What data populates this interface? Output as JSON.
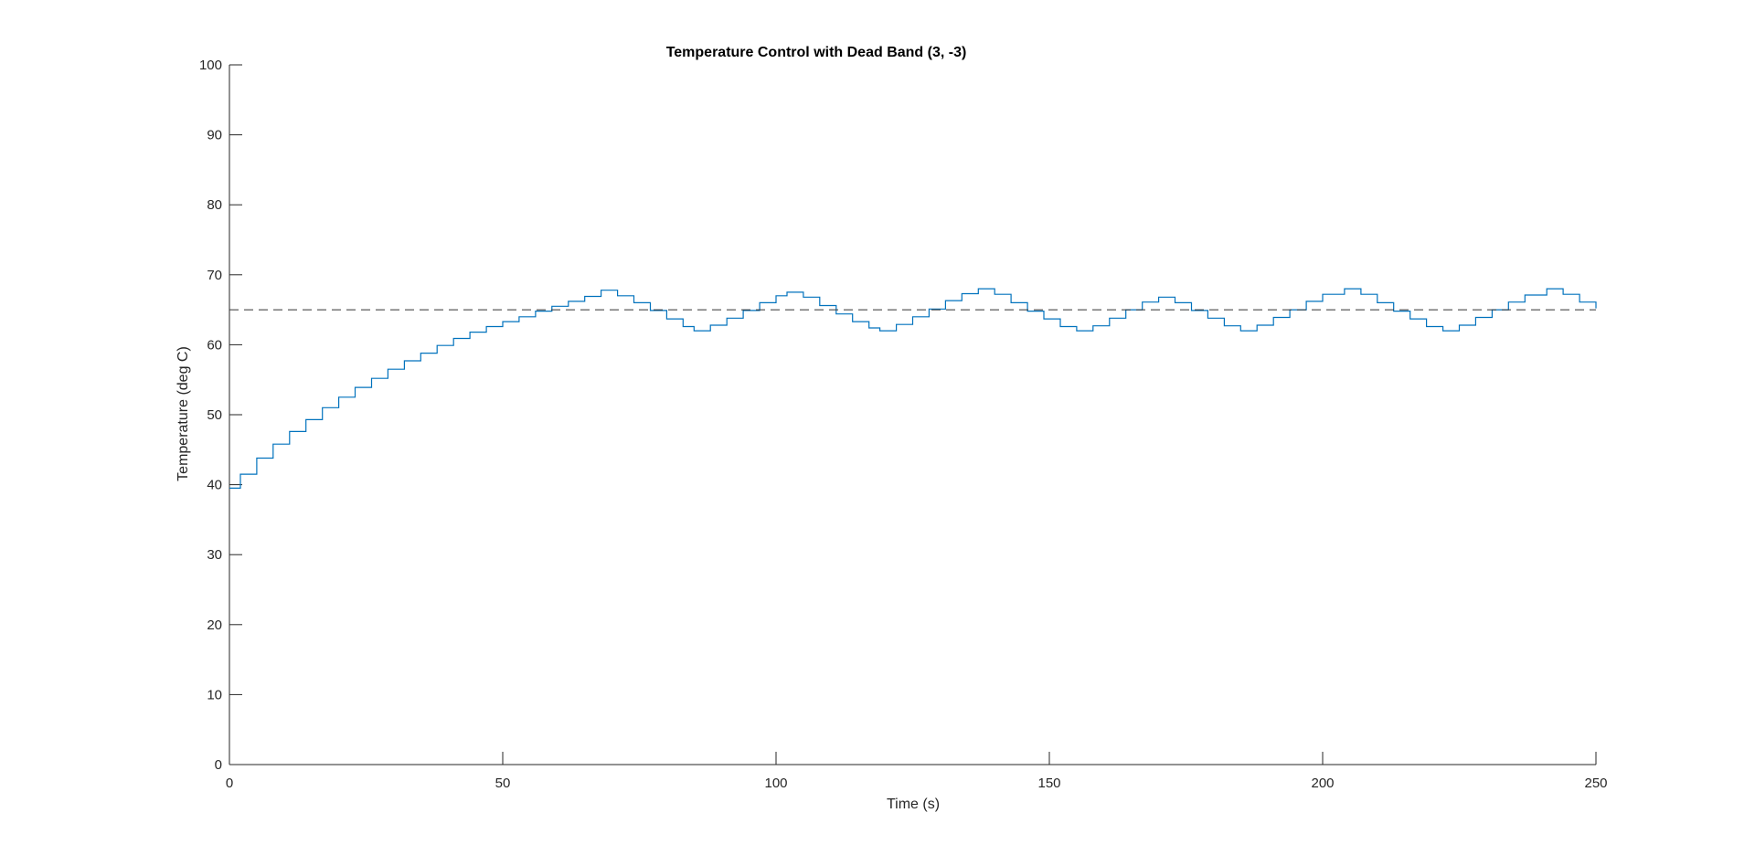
{
  "chart_data": {
    "type": "line",
    "title": "Temperature Control with Dead Band (3, -3)",
    "xlabel": "Time (s)",
    "ylabel": "Temperature (deg C)",
    "xlim": [
      0,
      250
    ],
    "ylim": [
      0,
      100
    ],
    "xticks": [
      0,
      50,
      100,
      150,
      200,
      250
    ],
    "yticks": [
      0,
      10,
      20,
      30,
      40,
      50,
      60,
      70,
      80,
      90,
      100
    ],
    "xtick_labels": [
      "0",
      "50",
      "100",
      "150",
      "200",
      "250"
    ],
    "ytick_labels": [
      "0",
      "10",
      "20",
      "30",
      "40",
      "50",
      "60",
      "70",
      "80",
      "90",
      "100"
    ],
    "grid": false,
    "legend": "none",
    "series": [
      {
        "style": "stairs",
        "color": "#0072BD",
        "x": [
          0,
          2,
          5,
          8,
          11,
          14,
          17,
          20,
          23,
          26,
          29,
          32,
          35,
          38,
          41,
          44,
          47,
          50,
          53,
          56,
          59,
          62,
          65,
          68,
          71,
          74,
          77,
          80,
          83,
          85,
          88,
          91,
          94,
          97,
          100,
          102,
          105,
          108,
          111,
          114,
          117,
          119,
          122,
          125,
          128,
          131,
          134,
          137,
          140,
          143,
          146,
          149,
          152,
          155,
          158,
          161,
          164,
          167,
          170,
          173,
          176,
          179,
          182,
          185,
          188,
          191,
          194,
          197,
          200,
          204,
          207,
          210,
          213,
          216,
          219,
          222,
          225,
          228,
          231,
          234,
          237,
          241,
          244,
          247,
          250
        ],
        "y": [
          39.5,
          41.5,
          43.8,
          45.8,
          47.6,
          49.3,
          51.0,
          52.5,
          53.9,
          55.2,
          56.5,
          57.7,
          58.8,
          59.9,
          60.9,
          61.8,
          62.6,
          63.3,
          64.0,
          64.8,
          65.5,
          66.2,
          66.9,
          67.8,
          67.0,
          66.0,
          64.9,
          63.7,
          62.6,
          62.0,
          62.8,
          63.8,
          64.9,
          66.0,
          67.0,
          67.5,
          66.8,
          65.6,
          64.4,
          63.3,
          62.4,
          62.0,
          62.9,
          64.0,
          65.1,
          66.3,
          67.3,
          68.0,
          67.2,
          66.0,
          64.8,
          63.7,
          62.6,
          62.0,
          62.7,
          63.8,
          65.0,
          66.1,
          66.8,
          66.0,
          64.9,
          63.8,
          62.7,
          62.0,
          62.8,
          63.9,
          65.0,
          66.2,
          67.2,
          68.0,
          67.2,
          66.0,
          64.8,
          63.7,
          62.6,
          62.0,
          62.8,
          63.9,
          65.0,
          66.1,
          67.1,
          68.0,
          67.2,
          66.1,
          65.2
        ]
      },
      {
        "style": "dashed",
        "color": "#333333",
        "x": [
          0,
          250
        ],
        "y": [
          65,
          65
        ]
      }
    ]
  }
}
